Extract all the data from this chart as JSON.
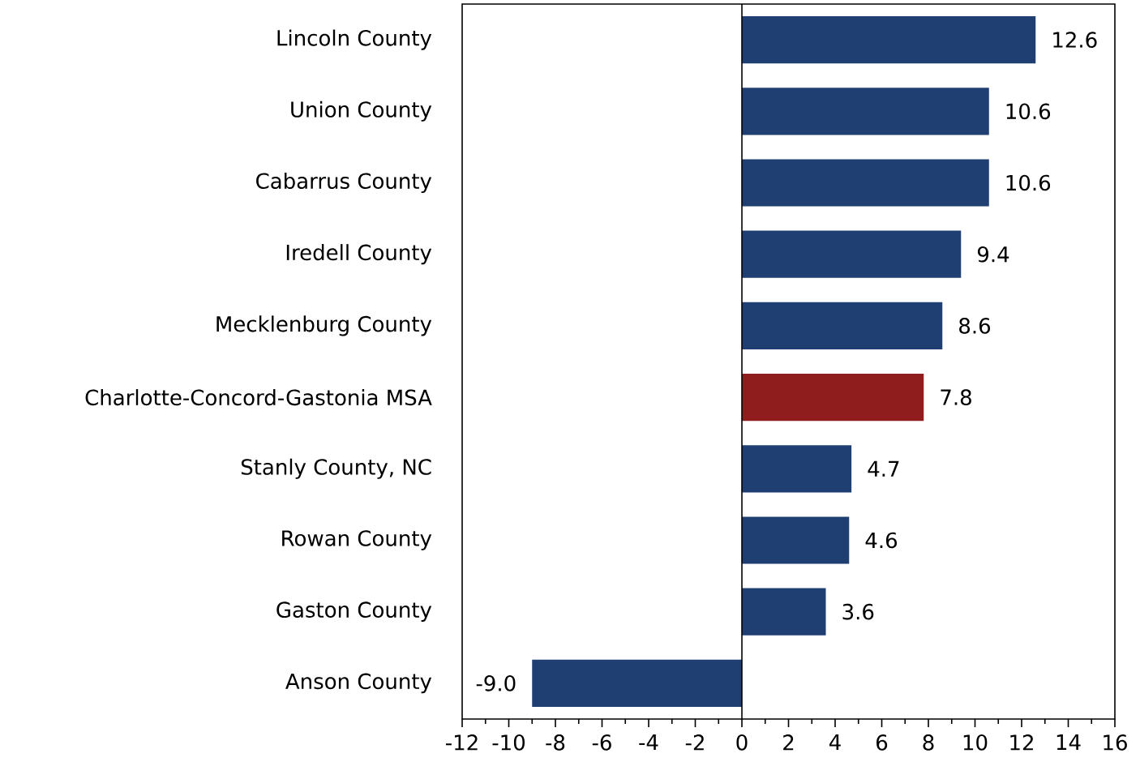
{
  "chart_data": {
    "type": "bar",
    "orientation": "horizontal",
    "categories": [
      "Lincoln County",
      "Union County",
      "Cabarrus County",
      "Iredell County",
      "Mecklenburg County",
      "Charlotte-Concord-Gastonia MSA",
      "Stanly County, NC",
      "Rowan County",
      "Gaston County",
      "Anson County"
    ],
    "values": [
      12.6,
      10.6,
      10.6,
      9.4,
      8.6,
      7.8,
      4.7,
      4.6,
      3.6,
      -9.0
    ],
    "value_labels": [
      "12.6",
      "10.6",
      "10.6",
      "9.4",
      "8.6",
      "7.8",
      "4.7",
      "4.6",
      "3.6",
      "-9.0"
    ],
    "colors": [
      "#1f3f73",
      "#1f3f73",
      "#1f3f73",
      "#1f3f73",
      "#1f3f73",
      "#8f1d1e",
      "#1f3f73",
      "#1f3f73",
      "#1f3f73",
      "#1f3f73"
    ],
    "xlim": [
      -12,
      16
    ],
    "xticks": [
      -12,
      -10,
      -8,
      -6,
      -4,
      -2,
      0,
      2,
      4,
      6,
      8,
      10,
      12,
      14,
      16
    ]
  }
}
